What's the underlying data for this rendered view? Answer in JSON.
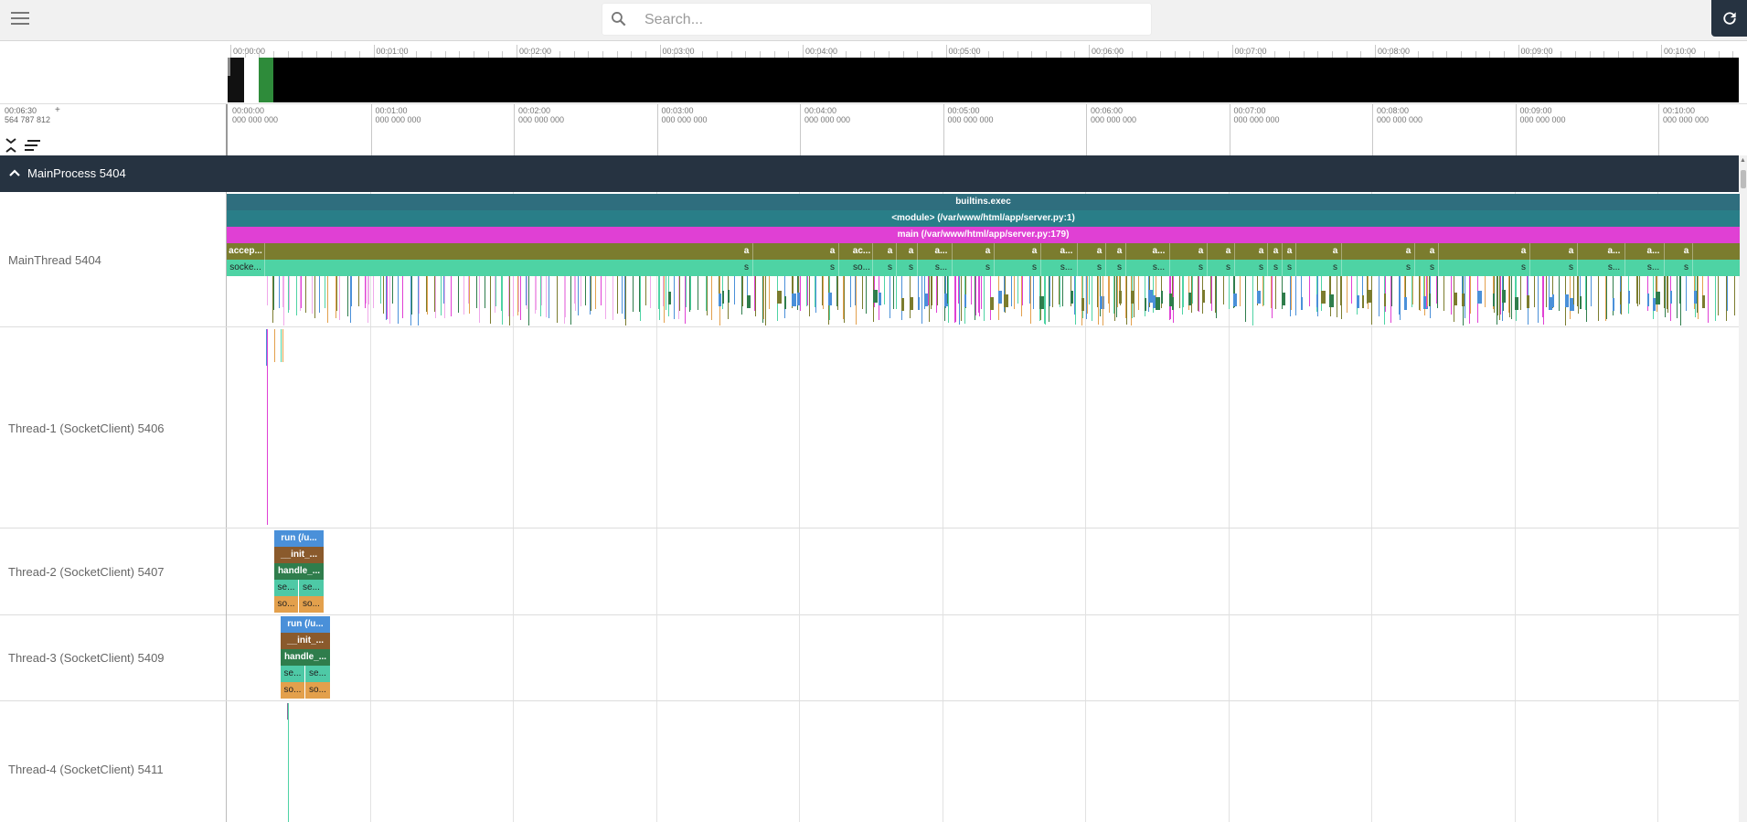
{
  "search": {
    "placeholder": "Search...",
    "value": ""
  },
  "overview": {
    "ticks": [
      "00:00:00",
      "00:01:00",
      "00:02:00",
      "00:03:00",
      "00:04:00",
      "00:05:00",
      "00:06:00",
      "00:07:00",
      "00:08:00",
      "00:09:00",
      "00:10:00"
    ]
  },
  "timeaxis": {
    "cursor_time": "00:06:30",
    "cursor_time_ns": "564 787 812",
    "cursor_plus": "+",
    "ticks": [
      {
        "time": "00:00:00",
        "ns": "000 000 000"
      },
      {
        "time": "00:01:00",
        "ns": "000 000 000"
      },
      {
        "time": "00:02:00",
        "ns": "000 000 000"
      },
      {
        "time": "00:03:00",
        "ns": "000 000 000"
      },
      {
        "time": "00:04:00",
        "ns": "000 000 000"
      },
      {
        "time": "00:05:00",
        "ns": "000 000 000"
      },
      {
        "time": "00:06:00",
        "ns": "000 000 000"
      },
      {
        "time": "00:07:00",
        "ns": "000 000 000"
      },
      {
        "time": "00:08:00",
        "ns": "000 000 000"
      },
      {
        "time": "00:09:00",
        "ns": "000 000 000"
      },
      {
        "time": "00:10:00",
        "ns": "000 000 000"
      }
    ]
  },
  "process": {
    "label": "MainProcess 5404"
  },
  "threads": [
    {
      "label": "MainThread 5404"
    },
    {
      "label": "Thread-1 (SocketClient) 5406"
    },
    {
      "label": "Thread-2 (SocketClient) 5407"
    },
    {
      "label": "Thread-3 (SocketClient) 5409"
    },
    {
      "label": "Thread-4 (SocketClient) 5411"
    }
  ],
  "main_slices": {
    "builtins": "builtins.exec",
    "module": "<module> (/var/www/html/app/server.py:1)",
    "main": "main (/var/www/html/app/server.py:179)",
    "accept_first": "accep...",
    "socket_first": "socke...",
    "accept_short": "a",
    "accept_ac": "ac...",
    "accept_a_dots": "a...",
    "socket_short": "s",
    "socket_so": "so...",
    "socket_s_dots": "s..."
  },
  "thread2_slices": {
    "run": "run (/u...",
    "init": "__init_...",
    "handle": "handle_...",
    "se": "se...",
    "so": "so..."
  },
  "thread3_slices": {
    "run": "run (/u...",
    "init": "__init_...",
    "handle": "handle_...",
    "se": "se...",
    "so": "so..."
  },
  "colors": {
    "header": "#263341",
    "builtins": "#2f6e7e",
    "module": "#297e88",
    "main": "#e040d4",
    "accept": "#7b7c2e",
    "socket": "#4ed3a4",
    "run": "#4a90d9",
    "init": "#8a5a2c",
    "handle": "#2f7d4c",
    "se": "#4ec9a6",
    "so": "#e3a04c"
  }
}
